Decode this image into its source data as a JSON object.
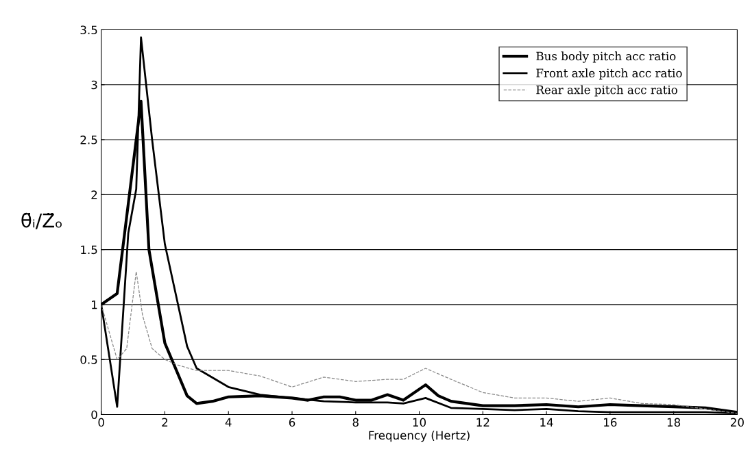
{
  "chart_data": {
    "type": "line",
    "xlabel": "Frequency (Hertz)",
    "ylabel": "θ̈ᵢ/Z̈ₒ",
    "xlim": [
      0,
      20
    ],
    "xticks": [
      0,
      2,
      4,
      6,
      8,
      10,
      12,
      14,
      16,
      18,
      20
    ],
    "ylim": [
      0,
      3.5
    ],
    "yticks": [
      0,
      0.5,
      1,
      1.5,
      2,
      2.5,
      3,
      3.5
    ],
    "grid": "y",
    "legend": "top right",
    "marker": "none",
    "series": [
      {
        "name": "Bus body pitch acc ratio",
        "color": "#000000",
        "line_style": "solid",
        "x": [
          0,
          0.5,
          1.25,
          1.5,
          2,
          2.7,
          3,
          3.5,
          4,
          5,
          6,
          6.5,
          7,
          7.5,
          8,
          8.5,
          9,
          9.5,
          10.2,
          10.6,
          11,
          12,
          13,
          14,
          15,
          16,
          17,
          18,
          19,
          20
        ],
        "values": [
          1,
          1.1,
          2.85,
          1.5,
          0.65,
          0.17,
          0.1,
          0.12,
          0.16,
          0.17,
          0.15,
          0.13,
          0.16,
          0.16,
          0.13,
          0.13,
          0.18,
          0.13,
          0.27,
          0.17,
          0.12,
          0.08,
          0.08,
          0.09,
          0.07,
          0.09,
          0.08,
          0.07,
          0.06,
          0.02
        ]
      },
      {
        "name": "Front axle pitch acc ratio",
        "color": "#000000",
        "line_style": "solid",
        "x": [
          0,
          0.5,
          0.85,
          1.1,
          1.25,
          1.6,
          2,
          2.7,
          3,
          4,
          5,
          6,
          7,
          8,
          9,
          9.5,
          10.2,
          11,
          12,
          13,
          14,
          15,
          16,
          17,
          18,
          19,
          20
        ],
        "values": [
          1,
          0.07,
          1.65,
          2.05,
          3.43,
          2.5,
          1.55,
          0.62,
          0.42,
          0.25,
          0.18,
          0.15,
          0.12,
          0.11,
          0.11,
          0.1,
          0.15,
          0.06,
          0.05,
          0.04,
          0.05,
          0.03,
          0.02,
          0.02,
          0.02,
          0.02,
          0.01
        ]
      },
      {
        "name": "Rear axle pitch acc ratio",
        "color": "#888888",
        "line_style": "dashed",
        "x": [
          0,
          0.2,
          0.5,
          0.8,
          1.1,
          1.3,
          1.6,
          2,
          2.4,
          3,
          4,
          5,
          6,
          7,
          8,
          9,
          9.5,
          10.2,
          11,
          12,
          13,
          14,
          15,
          16,
          17,
          18,
          19,
          20
        ],
        "values": [
          1,
          0.8,
          0.5,
          0.6,
          1.3,
          0.9,
          0.6,
          0.5,
          0.45,
          0.4,
          0.4,
          0.35,
          0.25,
          0.34,
          0.3,
          0.32,
          0.32,
          0.42,
          0.32,
          0.2,
          0.15,
          0.15,
          0.12,
          0.15,
          0.1,
          0.09,
          0.05,
          0.01
        ]
      }
    ]
  }
}
